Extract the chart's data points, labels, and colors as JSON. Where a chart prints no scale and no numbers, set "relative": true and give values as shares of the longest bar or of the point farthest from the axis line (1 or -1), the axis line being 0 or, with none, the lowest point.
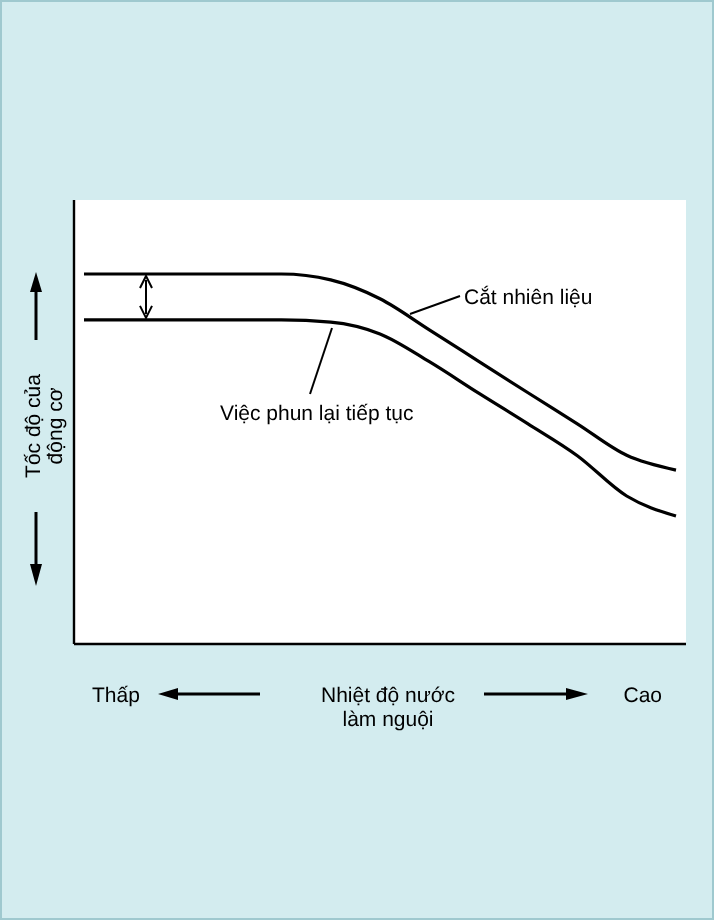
{
  "chart_data": {
    "type": "line",
    "relative": true,
    "xlabel": "Nhiệt độ nước\nlàm nguội",
    "ylabel": "Tốc độ của\nđộng cơ",
    "categories": [
      null,
      null,
      null,
      null,
      null,
      null,
      null,
      null,
      null,
      null,
      null,
      null,
      null
    ],
    "series": [
      {
        "color": "#000000",
        "values": [
          1,
          1,
          1,
          1,
          1,
          0.984,
          0.933,
          0.849,
          0.764,
          0.679,
          0.595,
          0.51,
          0.47
        ]
      },
      {
        "color": "#000000",
        "values": [
          0.876,
          0.876,
          0.876,
          0.876,
          0.876,
          0.87,
          0.838,
          0.763,
          0.678,
          0.595,
          0.509,
          0.4,
          0.346
        ]
      }
    ],
    "annotations": [
      "Cắt nhiên liệu",
      "Việc phun lại tiếp tục",
      "Thấp",
      "Cao"
    ],
    "marker": "none",
    "line_style": "solid"
  }
}
